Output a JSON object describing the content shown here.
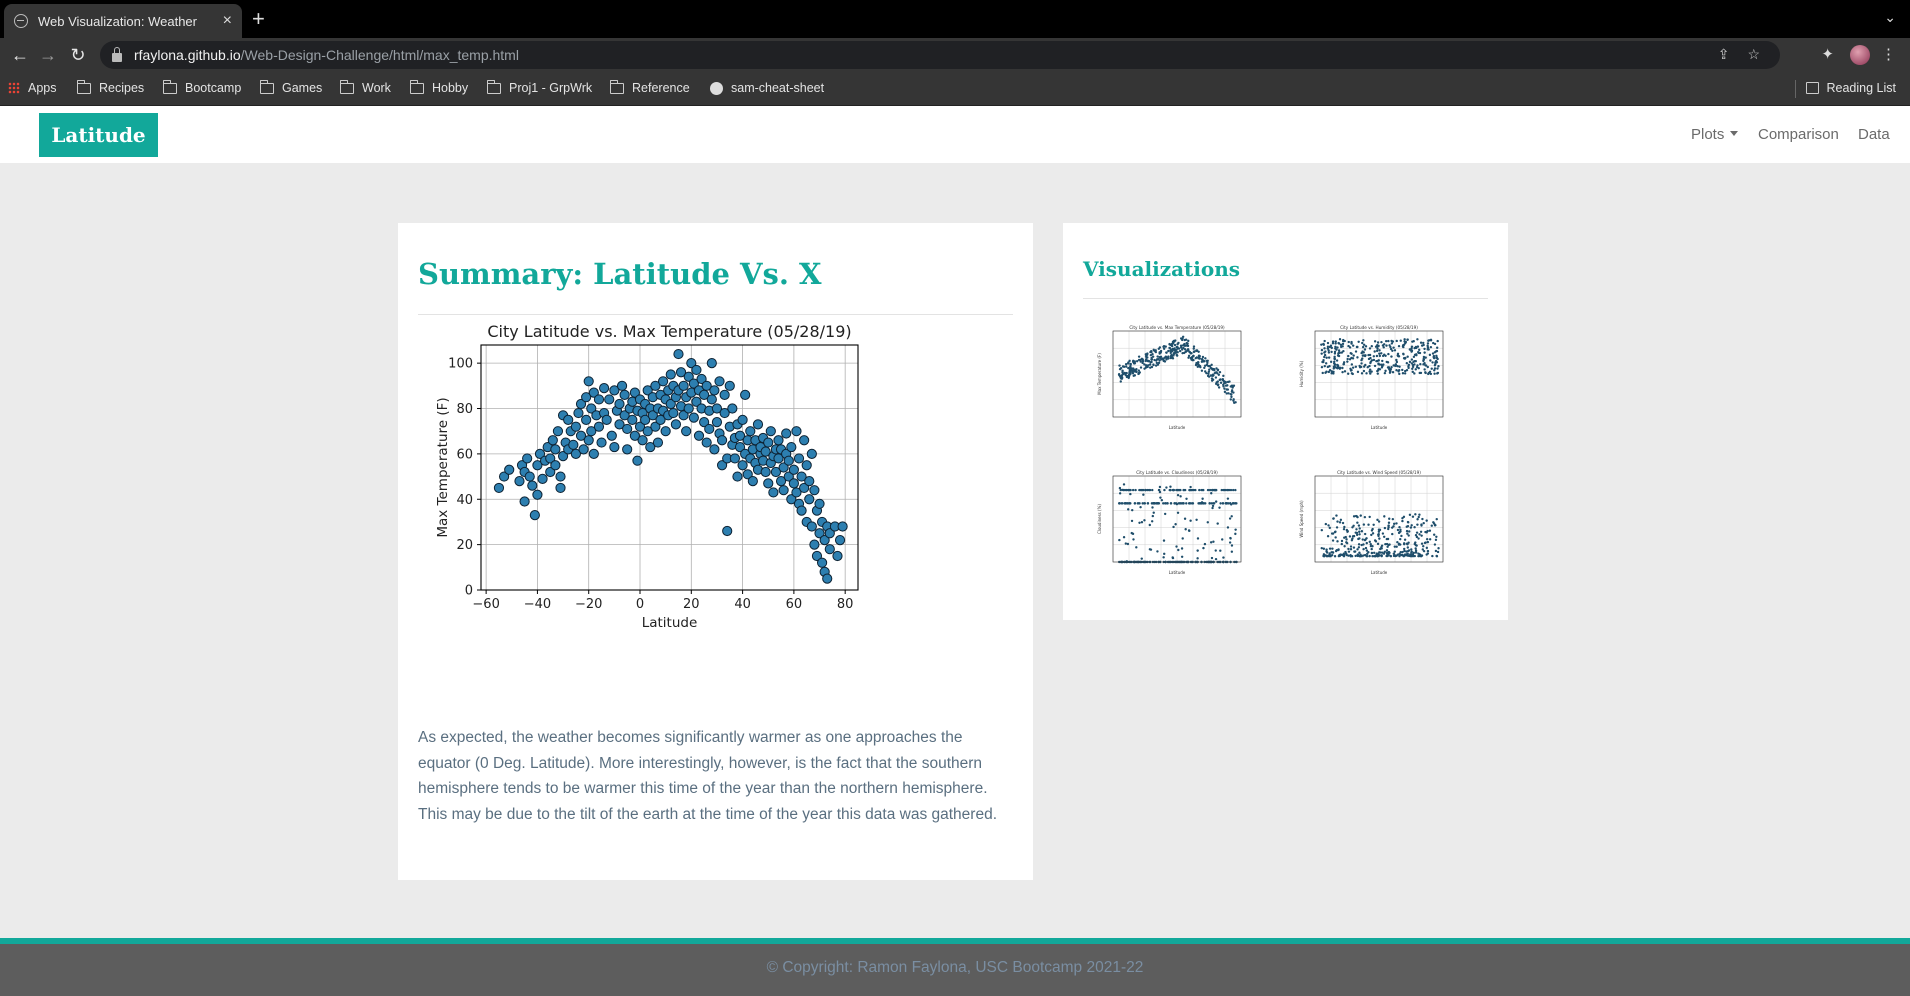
{
  "browser": {
    "tab_title": "Web Visualization: Weather",
    "tab_close": "×",
    "new_tab": "+",
    "tab_menu": "⌄",
    "url_host": "rfaylona.github.io",
    "url_path": "/Web-Design-Challenge/html/max_temp.html",
    "bookmarks": [
      "Apps",
      "Recipes",
      "Bootcamp",
      "Games",
      "Work",
      "Hobby",
      "Proj1 - GrpWrk",
      "Reference",
      "sam-cheat-sheet"
    ],
    "reading_list": "Reading List"
  },
  "navbar": {
    "brand": "Latitude",
    "links": [
      "Plots",
      "Comparison",
      "Data"
    ]
  },
  "summary": {
    "title": "Summary: Latitude Vs. X",
    "text": "As expected, the weather becomes significantly warmer as one approaches the equator (0 Deg. Latitude). More interestingly, however, is the fact that the southern hemisphere tends to be warmer this time of the year than the northern hemisphere. This may be due to the tilt of the earth at the time of the year this data was gathered."
  },
  "visualizations": {
    "title": "Visualizations",
    "thumbnails": [
      {
        "title": "City Latitude vs. Max Temperature (05/28/19)",
        "ylabel": "Max Temperature (F)",
        "kind": "temp"
      },
      {
        "title": "City Latitude vs. Humidity (05/28/19)",
        "ylabel": "Humidity (%)",
        "kind": "humidity"
      },
      {
        "title": "City Latitude vs. Cloudiness (05/28/19)",
        "ylabel": "Cloudiness (%)",
        "kind": "cloud"
      },
      {
        "title": "City Latitude vs. Wind Speed (05/28/19)",
        "ylabel": "Wind Speed (mph)",
        "kind": "wind"
      }
    ]
  },
  "footer": {
    "text": "© Copyright: Ramon Faylona, USC Bootcamp 2021-22"
  },
  "colors": {
    "accent": "#12a89a",
    "marker_fill": "#2d7fb0",
    "marker_edge": "#0d2233"
  },
  "chart_data": {
    "type": "scatter",
    "title": "City Latitude vs. Max Temperature (05/28/19)",
    "xlabel": "Latitude",
    "ylabel": "Max Temperature (F)",
    "xlim": [
      -62,
      85
    ],
    "ylim": [
      0,
      108
    ],
    "xticks": [
      -60,
      -40,
      -20,
      0,
      20,
      40,
      60,
      80
    ],
    "yticks": [
      0,
      20,
      40,
      60,
      80,
      100
    ],
    "grid": true,
    "points": [
      [
        -55,
        45
      ],
      [
        -53,
        50
      ],
      [
        -51,
        53
      ],
      [
        -47,
        48
      ],
      [
        -46,
        55
      ],
      [
        -45,
        52
      ],
      [
        -45,
        39
      ],
      [
        -44,
        58
      ],
      [
        -43,
        50
      ],
      [
        -42,
        46
      ],
      [
        -41,
        33
      ],
      [
        -40,
        42
      ],
      [
        -40,
        55
      ],
      [
        -39,
        60
      ],
      [
        -38,
        49
      ],
      [
        -37,
        57
      ],
      [
        -36,
        63
      ],
      [
        -35,
        52
      ],
      [
        -35,
        58
      ],
      [
        -34,
        66
      ],
      [
        -33,
        55
      ],
      [
        -33,
        62
      ],
      [
        -32,
        70
      ],
      [
        -31,
        50
      ],
      [
        -31,
        45
      ],
      [
        -30,
        77
      ],
      [
        -30,
        59
      ],
      [
        -29,
        65
      ],
      [
        -28,
        62
      ],
      [
        -28,
        75
      ],
      [
        -27,
        70
      ],
      [
        -26,
        64
      ],
      [
        -25,
        60
      ],
      [
        -25,
        72
      ],
      [
        -24,
        78
      ],
      [
        -23,
        68
      ],
      [
        -23,
        82
      ],
      [
        -22,
        62
      ],
      [
        -21,
        75
      ],
      [
        -21,
        85
      ],
      [
        -20,
        92
      ],
      [
        -20,
        66
      ],
      [
        -19,
        70
      ],
      [
        -19,
        80
      ],
      [
        -18,
        87
      ],
      [
        -18,
        60
      ],
      [
        -17,
        77
      ],
      [
        -16,
        84
      ],
      [
        -16,
        72
      ],
      [
        -15,
        65
      ],
      [
        -14,
        89
      ],
      [
        -14,
        78
      ],
      [
        -13,
        75
      ],
      [
        -12,
        84
      ],
      [
        -11,
        68
      ],
      [
        -10,
        88
      ],
      [
        -10,
        63
      ],
      [
        -9,
        79
      ],
      [
        -8,
        82
      ],
      [
        -8,
        73
      ],
      [
        -7,
        90
      ],
      [
        -6,
        77
      ],
      [
        -6,
        86
      ],
      [
        -5,
        71
      ],
      [
        -5,
        62
      ],
      [
        -4,
        80
      ],
      [
        -3,
        83
      ],
      [
        -3,
        75
      ],
      [
        -2,
        68
      ],
      [
        -2,
        87
      ],
      [
        -1,
        79
      ],
      [
        -1,
        57
      ],
      [
        0,
        84
      ],
      [
        0,
        72
      ],
      [
        1,
        78
      ],
      [
        1,
        66
      ],
      [
        2,
        82
      ],
      [
        2,
        75
      ],
      [
        3,
        88
      ],
      [
        3,
        70
      ],
      [
        4,
        80
      ],
      [
        4,
        63
      ],
      [
        5,
        77
      ],
      [
        5,
        85
      ],
      [
        6,
        72
      ],
      [
        6,
        90
      ],
      [
        7,
        80
      ],
      [
        7,
        65
      ],
      [
        8,
        86
      ],
      [
        8,
        75
      ],
      [
        9,
        79
      ],
      [
        9,
        92
      ],
      [
        10,
        84
      ],
      [
        10,
        70
      ],
      [
        11,
        88
      ],
      [
        11,
        77
      ],
      [
        12,
        95
      ],
      [
        12,
        82
      ],
      [
        13,
        78
      ],
      [
        13,
        90
      ],
      [
        14,
        85
      ],
      [
        14,
        73
      ],
      [
        15,
        104
      ],
      [
        15,
        88
      ],
      [
        16,
        81
      ],
      [
        16,
        96
      ],
      [
        17,
        77
      ],
      [
        17,
        90
      ],
      [
        18,
        85
      ],
      [
        18,
        70
      ],
      [
        19,
        94
      ],
      [
        19,
        80
      ],
      [
        20,
        100
      ],
      [
        20,
        87
      ],
      [
        21,
        76
      ],
      [
        21,
        91
      ],
      [
        22,
        83
      ],
      [
        22,
        97
      ],
      [
        23,
        68
      ],
      [
        23,
        88
      ],
      [
        24,
        80
      ],
      [
        24,
        93
      ],
      [
        25,
        74
      ],
      [
        25,
        86
      ],
      [
        26,
        65
      ],
      [
        26,
        90
      ],
      [
        27,
        79
      ],
      [
        27,
        71
      ],
      [
        28,
        84
      ],
      [
        28,
        100
      ],
      [
        29,
        62
      ],
      [
        29,
        88
      ],
      [
        30,
        74
      ],
      [
        30,
        80
      ],
      [
        31,
        69
      ],
      [
        31,
        92
      ],
      [
        32,
        55
      ],
      [
        32,
        66
      ],
      [
        33,
        86
      ],
      [
        33,
        78
      ],
      [
        34,
        58
      ],
      [
        34,
        26
      ],
      [
        35,
        72
      ],
      [
        35,
        90
      ],
      [
        36,
        64
      ],
      [
        36,
        80
      ],
      [
        37,
        67
      ],
      [
        37,
        58
      ],
      [
        38,
        73
      ],
      [
        38,
        50
      ],
      [
        39,
        63
      ],
      [
        39,
        68
      ],
      [
        40,
        75
      ],
      [
        40,
        55
      ],
      [
        41,
        60
      ],
      [
        41,
        86
      ],
      [
        42,
        66
      ],
      [
        42,
        51
      ],
      [
        43,
        70
      ],
      [
        43,
        58
      ],
      [
        44,
        62
      ],
      [
        44,
        48
      ],
      [
        45,
        66
      ],
      [
        45,
        56
      ],
      [
        46,
        73
      ],
      [
        46,
        53
      ],
      [
        47,
        60
      ],
      [
        47,
        63
      ],
      [
        48,
        57
      ],
      [
        48,
        67
      ],
      [
        49,
        52
      ],
      [
        49,
        61
      ],
      [
        50,
        65
      ],
      [
        50,
        47
      ],
      [
        51,
        56
      ],
      [
        51,
        70
      ],
      [
        52,
        59
      ],
      [
        52,
        43
      ],
      [
        53,
        62
      ],
      [
        53,
        52
      ],
      [
        54,
        66
      ],
      [
        54,
        58
      ],
      [
        55,
        48
      ],
      [
        55,
        62
      ],
      [
        56,
        54
      ],
      [
        56,
        44
      ],
      [
        57,
        60
      ],
      [
        57,
        69
      ],
      [
        58,
        50
      ],
      [
        58,
        57
      ],
      [
        59,
        40
      ],
      [
        59,
        63
      ],
      [
        60,
        53
      ],
      [
        60,
        47
      ],
      [
        61,
        70
      ],
      [
        61,
        43
      ],
      [
        62,
        58
      ],
      [
        62,
        38
      ],
      [
        63,
        50
      ],
      [
        63,
        35
      ],
      [
        64,
        66
      ],
      [
        64,
        45
      ],
      [
        65,
        55
      ],
      [
        65,
        30
      ],
      [
        66,
        48
      ],
      [
        66,
        40
      ],
      [
        67,
        60
      ],
      [
        67,
        28
      ],
      [
        68,
        44
      ],
      [
        68,
        20
      ],
      [
        69,
        35
      ],
      [
        69,
        15
      ],
      [
        70,
        25
      ],
      [
        70,
        38
      ],
      [
        71,
        12
      ],
      [
        71,
        30
      ],
      [
        72,
        22
      ],
      [
        72,
        8
      ],
      [
        73,
        28
      ],
      [
        73,
        5
      ],
      [
        74,
        18
      ],
      [
        74,
        25
      ],
      [
        76,
        28
      ],
      [
        78,
        22
      ],
      [
        79,
        28
      ],
      [
        77,
        15
      ]
    ]
  }
}
